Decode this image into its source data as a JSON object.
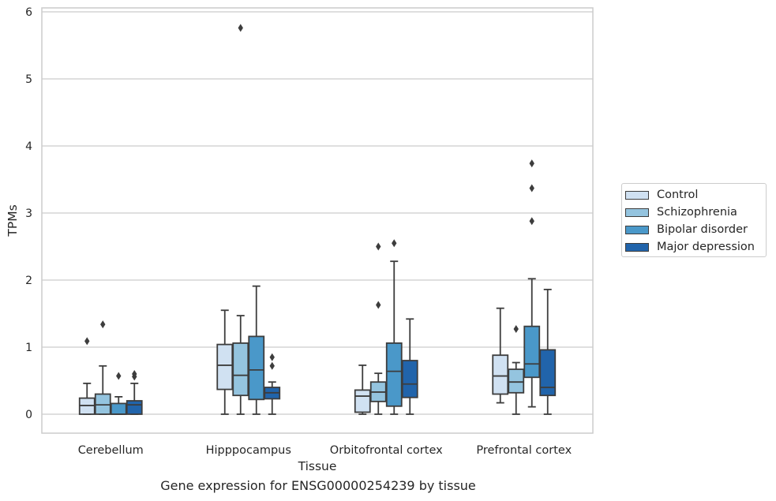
{
  "caption": "Gene expression for ENSG00000254239 by tissue",
  "chart_data": {
    "type": "box",
    "xlabel": "Tissue",
    "ylabel": "TPMs",
    "ylim": [
      -0.27,
      6.07
    ],
    "yticks": [
      0,
      1,
      2,
      3,
      4,
      5,
      6
    ],
    "grid": "horizontal",
    "legend_position": "right",
    "categories": [
      "Cerebellum",
      "Hipppocampus",
      "Orbitofrontal cortex",
      "Prefrontal cortex"
    ],
    "series": [
      {
        "name": "Control",
        "color": "#d0e1f2",
        "boxes": [
          {
            "whisker_low": 0.0,
            "q1": 0.0,
            "median": 0.13,
            "q3": 0.24,
            "whisker_high": 0.46,
            "outliers": [
              1.09
            ]
          },
          {
            "whisker_low": 0.0,
            "q1": 0.37,
            "median": 0.73,
            "q3": 1.04,
            "whisker_high": 1.55,
            "outliers": []
          },
          {
            "whisker_low": 0.0,
            "q1": 0.03,
            "median": 0.27,
            "q3": 0.36,
            "whisker_high": 0.73,
            "outliers": []
          },
          {
            "whisker_low": 0.17,
            "q1": 0.3,
            "median": 0.57,
            "q3": 0.88,
            "whisker_high": 1.58,
            "outliers": []
          }
        ]
      },
      {
        "name": "Schizophrenia",
        "color": "#94c4df",
        "boxes": [
          {
            "whisker_low": 0.0,
            "q1": 0.0,
            "median": 0.14,
            "q3": 0.3,
            "whisker_high": 0.72,
            "outliers": [
              1.34
            ]
          },
          {
            "whisker_low": 0.0,
            "q1": 0.28,
            "median": 0.58,
            "q3": 1.06,
            "whisker_high": 1.47,
            "outliers": [
              5.76
            ]
          },
          {
            "whisker_low": 0.0,
            "q1": 0.19,
            "median": 0.33,
            "q3": 0.48,
            "whisker_high": 0.61,
            "outliers": [
              1.63,
              2.5
            ]
          },
          {
            "whisker_low": 0.0,
            "q1": 0.32,
            "median": 0.48,
            "q3": 0.67,
            "whisker_high": 0.77,
            "outliers": [
              1.27
            ]
          }
        ]
      },
      {
        "name": "Bipolar disorder",
        "color": "#4a98c9",
        "boxes": [
          {
            "whisker_low": 0.0,
            "q1": 0.0,
            "median": 0.0,
            "q3": 0.16,
            "whisker_high": 0.26,
            "outliers": [
              0.57
            ]
          },
          {
            "whisker_low": 0.0,
            "q1": 0.22,
            "median": 0.66,
            "q3": 1.16,
            "whisker_high": 1.91,
            "outliers": []
          },
          {
            "whisker_low": 0.0,
            "q1": 0.12,
            "median": 0.64,
            "q3": 1.06,
            "whisker_high": 2.28,
            "outliers": [
              2.55
            ]
          },
          {
            "whisker_low": 0.11,
            "q1": 0.55,
            "median": 0.75,
            "q3": 1.31,
            "whisker_high": 2.02,
            "outliers": [
              2.88,
              3.37,
              3.74
            ]
          }
        ]
      },
      {
        "name": "Major depression",
        "color": "#2164ab",
        "boxes": [
          {
            "whisker_low": 0.0,
            "q1": 0.0,
            "median": 0.14,
            "q3": 0.2,
            "whisker_high": 0.46,
            "outliers": [
              0.56,
              0.6
            ]
          },
          {
            "whisker_low": 0.0,
            "q1": 0.23,
            "median": 0.32,
            "q3": 0.4,
            "whisker_high": 0.48,
            "outliers": [
              0.72,
              0.85
            ]
          },
          {
            "whisker_low": 0.0,
            "q1": 0.25,
            "median": 0.45,
            "q3": 0.8,
            "whisker_high": 1.42,
            "outliers": []
          },
          {
            "whisker_low": 0.0,
            "q1": 0.28,
            "median": 0.4,
            "q3": 0.96,
            "whisker_high": 1.86,
            "outliers": []
          }
        ]
      }
    ]
  }
}
